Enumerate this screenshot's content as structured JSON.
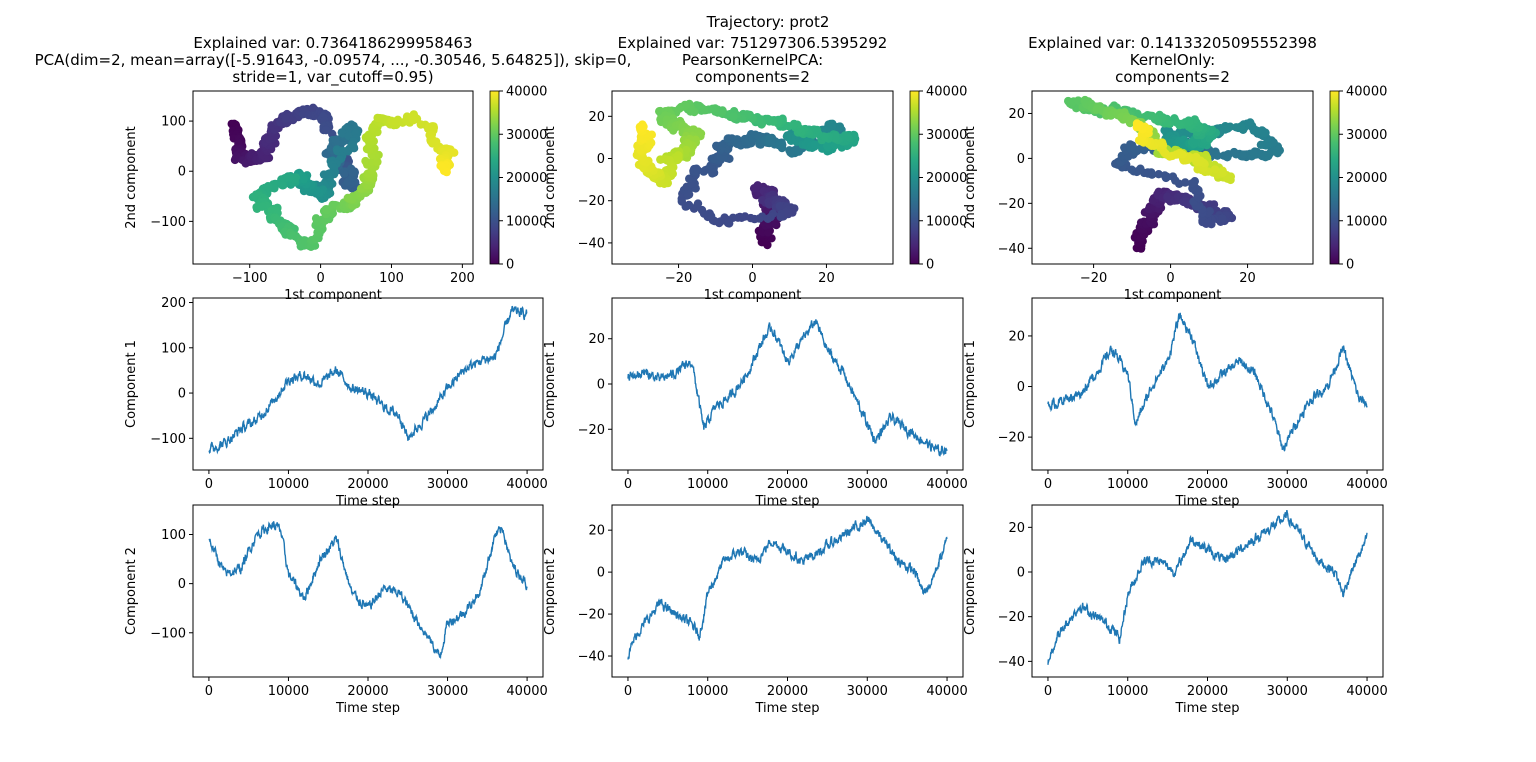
{
  "suptitle": "Trajectory: prot2",
  "colors": {
    "line": "#1f77b4",
    "axes": "#000000",
    "background": "#ffffff"
  },
  "colorbar": {
    "ticks": [
      "0",
      "10000",
      "20000",
      "30000",
      "40000"
    ],
    "colormap": "viridis",
    "range": [
      0,
      40000
    ]
  },
  "chart_data": [
    {
      "id": "s0",
      "type": "scatter",
      "title_lines": [
        "Explained var: 0.7364186299958463",
        "PCA(dim=2, mean=array([-5.91643, -0.09574, ..., -0.30546,  5.64825]), skip=0,",
        "stride=1, var_cutoff=0.95)"
      ],
      "xlabel": "1st component",
      "ylabel": "2nd component",
      "xlim": [
        -180,
        215
      ],
      "ylim": [
        -185,
        160
      ],
      "xticks": [
        -100,
        0,
        100,
        200
      ],
      "yticks": [
        -100,
        0,
        100
      ],
      "color_by": "Time step",
      "clim": [
        0,
        40000
      ],
      "n_points": 40000
    },
    {
      "id": "s1",
      "type": "scatter",
      "title_lines": [
        "Explained var: 751297306.5395292",
        "PearsonKernelPCA:",
        "components=2"
      ],
      "xlabel": "1st component",
      "ylabel": "2nd component",
      "xlim": [
        -38,
        38
      ],
      "ylim": [
        -50,
        32
      ],
      "xticks": [
        -20,
        0,
        20
      ],
      "yticks": [
        -40,
        -20,
        0,
        20
      ],
      "color_by": "Time step",
      "clim": [
        0,
        40000
      ],
      "n_points": 40000
    },
    {
      "id": "s2",
      "type": "scatter",
      "title_lines": [
        "Explained var: 0.14133205095552398",
        "KernelOnly:",
        "components=2"
      ],
      "xlabel": "1st component",
      "ylabel": "2nd component",
      "xlim": [
        -36,
        37
      ],
      "ylim": [
        -47,
        30
      ],
      "xticks": [
        -20,
        0,
        20
      ],
      "yticks": [
        -40,
        -20,
        0,
        20
      ],
      "color_by": "Time step",
      "clim": [
        0,
        40000
      ],
      "n_points": 40000
    },
    {
      "id": "l10",
      "type": "line",
      "xlabel": "Time step",
      "ylabel": "Component 1",
      "xlim": [
        -2000,
        42000
      ],
      "ylim": [
        -170,
        210
      ],
      "xticks": [
        0,
        10000,
        20000,
        30000,
        40000
      ],
      "yticks": [
        -100,
        0,
        100,
        200
      ],
      "x": [
        0,
        2000,
        4000,
        6000,
        8000,
        10000,
        12000,
        14000,
        16000,
        18000,
        20000,
        22000,
        24000,
        25000,
        26000,
        28000,
        30000,
        32000,
        34000,
        36000,
        38000,
        40000
      ],
      "y": [
        -125,
        -110,
        -80,
        -60,
        -20,
        30,
        40,
        20,
        50,
        10,
        0,
        -30,
        -50,
        -100,
        -80,
        -40,
        10,
        50,
        70,
        80,
        180,
        175
      ]
    },
    {
      "id": "l11",
      "type": "line",
      "xlabel": "Time step",
      "ylabel": "Component 1",
      "xlim": [
        -2000,
        42000
      ],
      "ylim": [
        -38,
        38
      ],
      "xticks": [
        0,
        10000,
        20000,
        30000,
        40000
      ],
      "yticks": [
        -20,
        0,
        20
      ],
      "x": [
        0,
        2000,
        4000,
        6000,
        8000,
        9500,
        11000,
        13000,
        15000,
        17000,
        18000,
        20000,
        22000,
        23500,
        25000,
        27000,
        29000,
        31000,
        33000,
        35000,
        37000,
        39000,
        40000
      ],
      "y": [
        3,
        5,
        2,
        5,
        10,
        -20,
        -10,
        -5,
        5,
        20,
        25,
        10,
        20,
        28,
        15,
        5,
        -10,
        -25,
        -15,
        -20,
        -25,
        -30,
        -28
      ]
    },
    {
      "id": "l12",
      "type": "line",
      "xlabel": "Time step",
      "ylabel": "Component 1",
      "xlim": [
        -2000,
        42000
      ],
      "ylim": [
        -33,
        35
      ],
      "xticks": [
        0,
        10000,
        20000,
        30000,
        40000
      ],
      "yticks": [
        -20,
        0,
        20
      ],
      "x": [
        0,
        2000,
        4000,
        6000,
        8000,
        10000,
        11000,
        13000,
        15000,
        16500,
        18000,
        20000,
        22000,
        24000,
        26000,
        28000,
        29500,
        31000,
        33000,
        35000,
        37000,
        39000,
        40000
      ],
      "y": [
        -8,
        -5,
        -3,
        5,
        15,
        5,
        -15,
        0,
        10,
        28,
        20,
        0,
        5,
        10,
        5,
        -10,
        -25,
        -15,
        -5,
        0,
        15,
        -5,
        -7
      ]
    },
    {
      "id": "l20",
      "type": "line",
      "xlabel": "Time step",
      "ylabel": "Component 2",
      "xlim": [
        -2000,
        42000
      ],
      "ylim": [
        -190,
        160
      ],
      "xticks": [
        0,
        10000,
        20000,
        30000,
        40000
      ],
      "yticks": [
        -100,
        0,
        100
      ],
      "x": [
        0,
        2000,
        4000,
        6000,
        8000,
        9000,
        10000,
        12000,
        14000,
        16000,
        18000,
        20000,
        22000,
        24000,
        26000,
        28000,
        29000,
        30000,
        32000,
        34000,
        36000,
        37000,
        38000,
        40000
      ],
      "y": [
        90,
        20,
        30,
        100,
        120,
        110,
        20,
        -30,
        50,
        90,
        -20,
        -50,
        -10,
        -20,
        -70,
        -120,
        -150,
        -80,
        -60,
        -20,
        100,
        110,
        40,
        0
      ]
    },
    {
      "id": "l21",
      "type": "line",
      "xlabel": "Time step",
      "ylabel": "Component 2",
      "xlim": [
        -2000,
        42000
      ],
      "ylim": [
        -50,
        32
      ],
      "xticks": [
        0,
        10000,
        20000,
        30000,
        40000
      ],
      "yticks": [
        -40,
        -20,
        0,
        20
      ],
      "x": [
        0,
        1000,
        2000,
        3000,
        4000,
        6000,
        8000,
        9000,
        10000,
        12000,
        14000,
        16000,
        18000,
        20000,
        22000,
        24000,
        26000,
        28000,
        30000,
        32000,
        34000,
        36000,
        37000,
        38000,
        40000
      ],
      "y": [
        -40,
        -30,
        -25,
        -20,
        -15,
        -20,
        -25,
        -30,
        -10,
        5,
        10,
        5,
        15,
        10,
        5,
        10,
        15,
        20,
        25,
        15,
        5,
        0,
        -10,
        -5,
        15
      ]
    },
    {
      "id": "l22",
      "type": "line",
      "xlabel": "Time step",
      "ylabel": "Component 2",
      "xlim": [
        -2000,
        42000
      ],
      "ylim": [
        -47,
        30
      ],
      "xticks": [
        0,
        10000,
        20000,
        30000,
        40000
      ],
      "yticks": [
        -40,
        -20,
        0,
        20
      ],
      "x": [
        0,
        1000,
        2000,
        3000,
        4000,
        6000,
        8000,
        9000,
        10000,
        12000,
        14000,
        16000,
        18000,
        20000,
        22000,
        24000,
        26000,
        28000,
        30000,
        32000,
        34000,
        36000,
        37000,
        38000,
        40000
      ],
      "y": [
        -40,
        -30,
        -25,
        -20,
        -15,
        -20,
        -25,
        -30,
        -10,
        5,
        5,
        0,
        15,
        10,
        5,
        10,
        15,
        20,
        25,
        15,
        5,
        0,
        -10,
        0,
        15
      ]
    }
  ]
}
